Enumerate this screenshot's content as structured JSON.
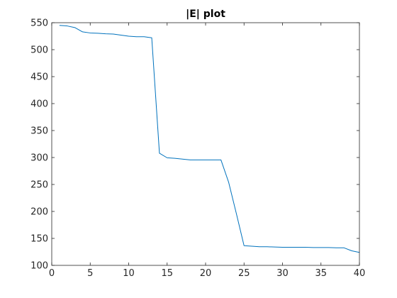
{
  "chart_data": {
    "type": "line",
    "title": "|E| plot",
    "xlabel": "",
    "ylabel": "",
    "xlim": [
      0,
      40
    ],
    "ylim": [
      100,
      550
    ],
    "xticks": [
      0,
      5,
      10,
      15,
      20,
      25,
      30,
      35,
      40
    ],
    "yticks": [
      100,
      150,
      200,
      250,
      300,
      350,
      400,
      450,
      500,
      550
    ],
    "grid": false,
    "box": true,
    "series": [
      {
        "color": "#0072bd",
        "x": [
          1,
          2,
          3,
          4,
          5,
          6,
          7,
          8,
          9,
          10,
          11,
          12,
          13,
          14,
          15,
          16,
          17,
          18,
          19,
          20,
          21,
          22,
          23,
          24,
          25,
          26,
          27,
          28,
          29,
          30,
          31,
          32,
          33,
          34,
          35,
          36,
          37,
          38,
          39,
          40
        ],
        "y": [
          545,
          544,
          541,
          533,
          531,
          530.5,
          529.5,
          529,
          527,
          525,
          524,
          524,
          522,
          308,
          299.5,
          298.5,
          297,
          295.5,
          295.5,
          295.5,
          295.5,
          295.5,
          254,
          196,
          136.5,
          135.5,
          134.5,
          134.5,
          134,
          133.5,
          133.5,
          133.5,
          133.5,
          133,
          133,
          133,
          132.5,
          132.5,
          127,
          124
        ]
      }
    ]
  }
}
